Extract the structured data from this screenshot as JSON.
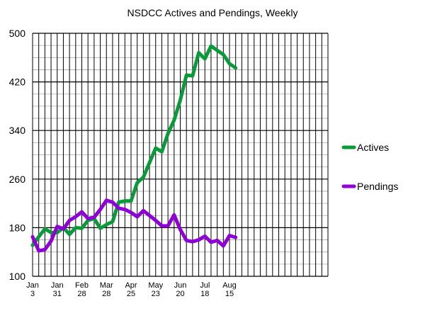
{
  "chart_data": {
    "type": "line",
    "title": "NSDCC Actives and Pendings, Weekly",
    "xlabel": "",
    "ylabel": "",
    "ylim": [
      100,
      500
    ],
    "yticks": [
      100,
      180,
      260,
      340,
      420,
      500
    ],
    "grid": true,
    "legend_position": "right",
    "x_tick_labels": [
      {
        "line1": "Jan",
        "line2": "3"
      },
      {
        "line1": "Jan",
        "line2": "31"
      },
      {
        "line1": "Feb",
        "line2": "28"
      },
      {
        "line1": "Mar",
        "line2": "28"
      },
      {
        "line1": "Apr",
        "line2": "25"
      },
      {
        "line1": "May",
        "line2": "23"
      },
      {
        "line1": "Jun",
        "line2": "20"
      },
      {
        "line1": "Jul",
        "line2": "18"
      },
      {
        "line1": "Aug",
        "line2": "15"
      }
    ],
    "x_tick_week_index": [
      0,
      4,
      8,
      12,
      16,
      20,
      24,
      28,
      32
    ],
    "total_weeks": 49,
    "series": [
      {
        "name": "Actives",
        "color": "#0b9a3a",
        "values": [
          151,
          165,
          178,
          172,
          172,
          180,
          169,
          180,
          179,
          192,
          195,
          179,
          185,
          190,
          222,
          224,
          224,
          254,
          263,
          287,
          311,
          305,
          335,
          357,
          390,
          431,
          430,
          468,
          458,
          479,
          472,
          465,
          450,
          443
        ]
      },
      {
        "name": "Pendings",
        "color": "#8f00d6",
        "values": [
          165,
          142,
          144,
          158,
          182,
          178,
          192,
          198,
          206,
          195,
          197,
          210,
          225,
          222,
          212,
          210,
          205,
          198,
          208,
          200,
          192,
          183,
          183,
          201,
          177,
          159,
          157,
          160,
          166,
          156,
          159,
          150,
          167,
          164
        ]
      }
    ]
  }
}
